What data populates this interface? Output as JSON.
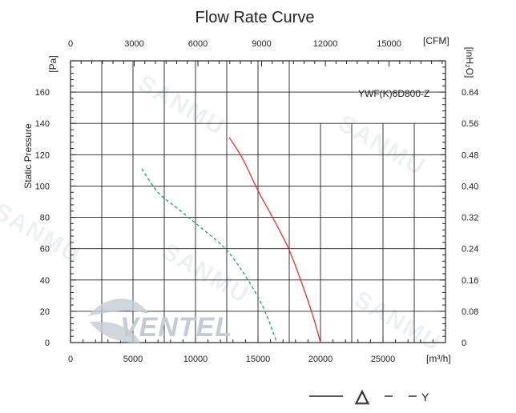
{
  "chart_data": {
    "type": "line",
    "title": "Flow Rate Curve",
    "model": "YWF(K)6D800-Z",
    "ylabel": "Static Pressure",
    "y_unit_left": "[Pa]",
    "y_unit_right": "[inH₂O]",
    "x_unit_bottom": "[m³/h]",
    "x_unit_top": "[CFM]",
    "xlim": [
      0,
      30000
    ],
    "ylim": [
      0,
      180
    ],
    "x_ticks_bottom": [
      "0",
      "5000",
      "10000",
      "15000",
      "20000",
      "25000"
    ],
    "x_ticks_top": [
      "0",
      "3000",
      "6000",
      "9000",
      "12000",
      "15000"
    ],
    "y_ticks_left": [
      "0",
      "20",
      "40",
      "60",
      "80",
      "100",
      "120",
      "140",
      "160"
    ],
    "y_ticks_right": [
      "0",
      "0.08",
      "0.16",
      "0.24",
      "0.32",
      "0.40",
      "0.48",
      "0.56",
      "0.64"
    ],
    "series": [
      {
        "name": "△",
        "color": "#e0332f",
        "style": "solid",
        "x": [
          12700,
          13800,
          15000,
          16300,
          17500,
          18500,
          19400,
          20000
        ],
        "y": [
          131,
          117,
          97,
          78,
          59,
          38,
          17,
          0
        ]
      },
      {
        "name": "Y",
        "color": "#1fa07a",
        "style": "dashed",
        "x": [
          5700,
          7000,
          8500,
          10500,
          12500,
          14200,
          15500,
          16500
        ],
        "y": [
          111,
          96,
          86,
          73,
          59,
          40,
          21,
          0
        ]
      }
    ],
    "legend": [
      {
        "line": "solid",
        "label": "△"
      },
      {
        "line": "dashed",
        "label": "Y"
      }
    ],
    "watermark": "SANMU",
    "logo": "VENTEL"
  }
}
